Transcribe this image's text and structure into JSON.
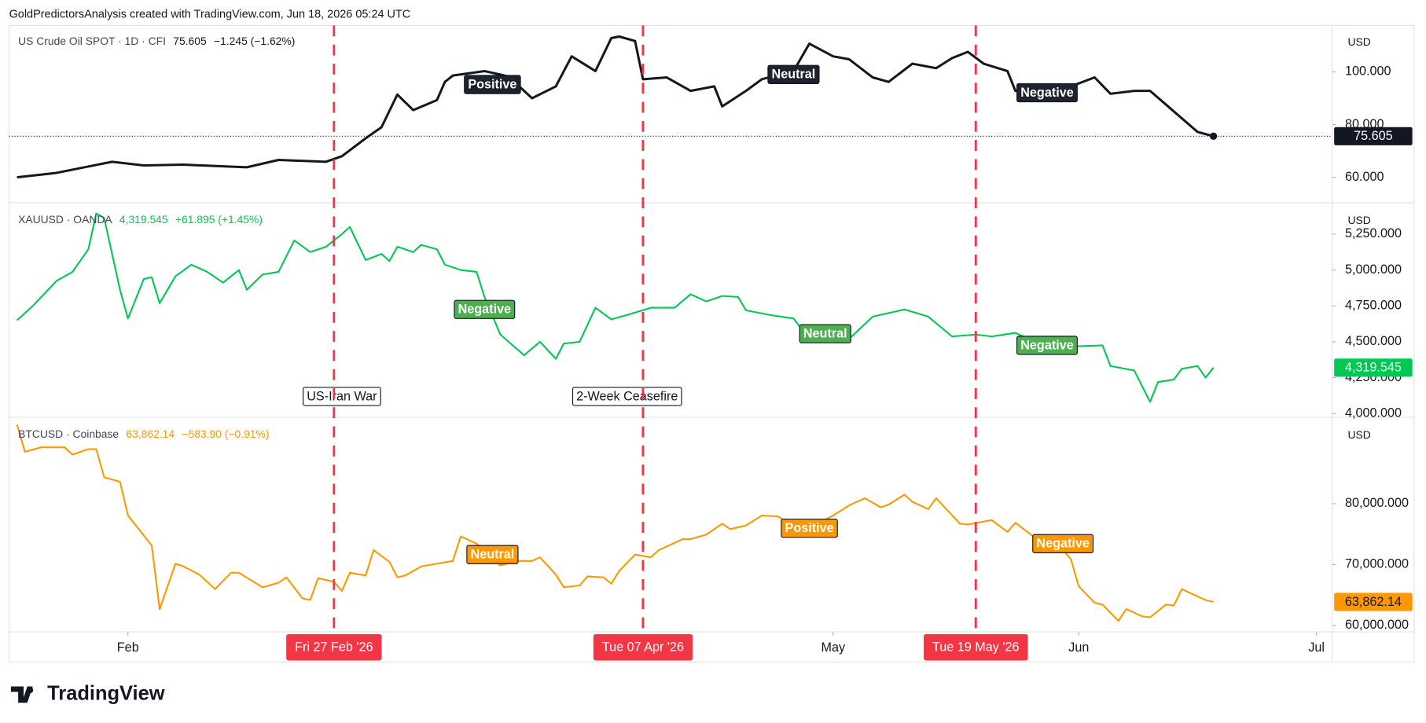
{
  "header": "GoldPredictorsAnalysis created with TradingView.com, Jun 18, 2026 05:24 UTC",
  "brand": "TradingView",
  "events": [
    {
      "x": "2026-02-27",
      "label": "Fri 27 Feb '26"
    },
    {
      "x": "2026-04-07",
      "label": "Tue 07 Apr '26"
    },
    {
      "x": "2026-05-19",
      "label": "Tue 19 May '26"
    }
  ],
  "chart_data": [
    {
      "type": "line",
      "currency": "USD",
      "legend_price": "75.605",
      "legend_change": "−1.245 (−1.62%)",
      "label_color": "#1e222d",
      "tag_text_color": "#ffffff",
      "last_price_line": true,
      "xlim": [
        "2026-01-17",
        "2026-07-03"
      ],
      "ylim": [
        50.7,
        117.6
      ],
      "yticks": [
        {
          "value": 60,
          "label": "60.000"
        },
        {
          "value": 80,
          "label": "80.000"
        },
        {
          "value": 100,
          "label": "100.000"
        }
      ],
      "series": [
        {
          "name": "US Crude Oil SPOT · 1D · CFI",
          "color": "#131722",
          "x": [
            "2026-01-18",
            "2026-01-23",
            "2026-01-30",
            "2026-02-03",
            "2026-02-08",
            "2026-02-16",
            "2026-02-20",
            "2026-02-26",
            "2026-02-28",
            "2026-03-03",
            "2026-03-05",
            "2026-03-07",
            "2026-03-09",
            "2026-03-12",
            "2026-03-13",
            "2026-03-14",
            "2026-03-18",
            "2026-03-21",
            "2026-03-24",
            "2026-03-27",
            "2026-03-29",
            "2026-04-01",
            "2026-04-03",
            "2026-04-04",
            "2026-04-06",
            "2026-04-07",
            "2026-04-10",
            "2026-04-13",
            "2026-04-16",
            "2026-04-17",
            "2026-04-20",
            "2026-04-22",
            "2026-04-26",
            "2026-04-28",
            "2026-05-01",
            "2026-05-03",
            "2026-05-06",
            "2026-05-08",
            "2026-05-11",
            "2026-05-14",
            "2026-05-16",
            "2026-05-18",
            "2026-05-20",
            "2026-05-23",
            "2026-05-24",
            "2026-05-27",
            "2026-05-31",
            "2026-06-03",
            "2026-06-05",
            "2026-06-08",
            "2026-06-10",
            "2026-06-12",
            "2026-06-14",
            "2026-06-16",
            "2026-06-18"
          ],
          "values": [
            60,
            61.7,
            65.9,
            64.5,
            64.8,
            63.8,
            66.6,
            65.9,
            68,
            74.8,
            79,
            91.4,
            85.5,
            89.3,
            96.2,
            98.6,
            100.3,
            98.3,
            90,
            94.5,
            105.9,
            100.3,
            112.8,
            113.4,
            111.7,
            97.2,
            97.9,
            92.8,
            94.5,
            86.9,
            92.8,
            97.2,
            100.3,
            110.7,
            105.9,
            104.8,
            97.9,
            96.2,
            103.1,
            101.4,
            105.2,
            107.6,
            103.1,
            100.3,
            92.8,
            94.5,
            94.5,
            97.9,
            91.7,
            92.8,
            92.8,
            87.6,
            82.4,
            77.2,
            75.605
          ]
        }
      ],
      "annotations": [
        {
          "text": "Positive",
          "x": "2026-03-19",
          "y": 95.2
        },
        {
          "text": "Neutral",
          "x": "2026-04-26",
          "y": 99
        },
        {
          "text": "Negative",
          "x": "2026-05-28",
          "y": 92.1
        }
      ]
    },
    {
      "type": "line",
      "currency": "USD",
      "legend_price": "4,319.545",
      "legend_change": "+61.895 (+1.45%)",
      "label_color": "#4caf50",
      "tag_text_color": "#ffffff",
      "xlim": [
        "2026-01-17",
        "2026-07-03"
      ],
      "ylim": [
        3980,
        5462
      ],
      "yticks": [
        {
          "value": 4000,
          "label": "4,000.000"
        },
        {
          "value": 4250,
          "label": "4,250.000"
        },
        {
          "value": 4500,
          "label": "4,500.000"
        },
        {
          "value": 4750,
          "label": "4,750.000"
        },
        {
          "value": 5000,
          "label": "5,000.000"
        },
        {
          "value": 5250,
          "label": "5,250.000"
        }
      ],
      "series": [
        {
          "name": "XAUUSD · OANDA",
          "color": "#00c853",
          "x": [
            "2026-01-18",
            "2026-01-20",
            "2026-01-23",
            "2026-01-25",
            "2026-01-27",
            "2026-01-28",
            "2026-01-29",
            "2026-01-31",
            "2026-02-01",
            "2026-02-03",
            "2026-02-04",
            "2026-02-05",
            "2026-02-07",
            "2026-02-09",
            "2026-02-11",
            "2026-02-13",
            "2026-02-15",
            "2026-02-16",
            "2026-02-18",
            "2026-02-20",
            "2026-02-22",
            "2026-02-24",
            "2026-02-26",
            "2026-02-28",
            "2026-03-01",
            "2026-03-03",
            "2026-03-05",
            "2026-03-06",
            "2026-03-07",
            "2026-03-09",
            "2026-03-10",
            "2026-03-12",
            "2026-03-13",
            "2026-03-15",
            "2026-03-17",
            "2026-03-18",
            "2026-03-20",
            "2026-03-23",
            "2026-03-25",
            "2026-03-27",
            "2026-03-28",
            "2026-03-30",
            "2026-04-01",
            "2026-04-03",
            "2026-04-05",
            "2026-04-08",
            "2026-04-11",
            "2026-04-13",
            "2026-04-15",
            "2026-04-17",
            "2026-04-19",
            "2026-04-20",
            "2026-04-23",
            "2026-04-26",
            "2026-04-28",
            "2026-05-03",
            "2026-05-06",
            "2026-05-10",
            "2026-05-13",
            "2026-05-16",
            "2026-05-19",
            "2026-05-21",
            "2026-05-24",
            "2026-05-27",
            "2026-06-01",
            "2026-06-04",
            "2026-06-05",
            "2026-06-08",
            "2026-06-10",
            "2026-06-11",
            "2026-06-13",
            "2026-06-14",
            "2026-06-16",
            "2026-06-17",
            "2026-06-18"
          ],
          "values": [
            4650,
            4750,
            4925,
            4987,
            5144,
            5394,
            5362,
            4862,
            4662,
            4937,
            4950,
            4769,
            4956,
            5037,
            4987,
            4912,
            5000,
            4862,
            4969,
            4987,
            5206,
            5125,
            5162,
            5250,
            5300,
            5069,
            5112,
            5062,
            5162,
            5125,
            5175,
            5144,
            5037,
            5000,
            4987,
            4812,
            4550,
            4406,
            4500,
            4381,
            4487,
            4500,
            4737,
            4656,
            4687,
            4737,
            4737,
            4831,
            4781,
            4819,
            4812,
            4719,
            4687,
            4662,
            4519,
            4519,
            4675,
            4725,
            4675,
            4537,
            4550,
            4537,
            4562,
            4487,
            4469,
            4475,
            4331,
            4300,
            4081,
            4219,
            4237,
            4312,
            4331,
            4250,
            4319.545
          ]
        }
      ],
      "annotations": [
        {
          "text": "Negative",
          "x": "2026-03-18",
          "y": 4725
        },
        {
          "text": "Neutral",
          "x": "2026-04-30",
          "y": 4556
        },
        {
          "text": "Negative",
          "x": "2026-05-28",
          "y": 4475
        }
      ],
      "notes": [
        {
          "text": "US-Iran War",
          "x": "2026-02-28",
          "y": 4119
        },
        {
          "text": "2-Week Ceasefire",
          "x": "2026-04-05",
          "y": 4119
        }
      ]
    },
    {
      "type": "line",
      "currency": "USD",
      "legend_price": "63,862.14",
      "legend_change": "−583.90 (−0.91%)",
      "label_color": "#ff9800",
      "tag_text_color": "#131722",
      "xlim": [
        "2026-01-17",
        "2026-07-03"
      ],
      "ylim": [
        58950,
        94030
      ],
      "xticks": [
        {
          "value": "2026-02-01",
          "label": "Feb"
        },
        {
          "value": "2026-05-01",
          "label": "May"
        },
        {
          "value": "2026-06-01",
          "label": "Jun"
        },
        {
          "value": "2026-07-01",
          "label": "Jul"
        }
      ],
      "yticks": [
        {
          "value": 60000,
          "label": "60,000.000"
        },
        {
          "value": 70000,
          "label": "70,000.000"
        },
        {
          "value": 80000,
          "label": "80,000.000"
        }
      ],
      "series": [
        {
          "name": "BTCUSD · Coinbase",
          "color": "#ff9800",
          "x": [
            "2026-01-18",
            "2026-01-19",
            "2026-01-21",
            "2026-01-24",
            "2026-01-25",
            "2026-01-27",
            "2026-01-28",
            "2026-01-29",
            "2026-01-31",
            "2026-02-01",
            "2026-02-04",
            "2026-02-05",
            "2026-02-07",
            "2026-02-08",
            "2026-02-10",
            "2026-02-12",
            "2026-02-14",
            "2026-02-15",
            "2026-02-18",
            "2026-02-20",
            "2026-02-21",
            "2026-02-23",
            "2026-02-24",
            "2026-02-25",
            "2026-02-27",
            "2026-02-28",
            "2026-03-01",
            "2026-03-03",
            "2026-03-04",
            "2026-03-06",
            "2026-03-07",
            "2026-03-08",
            "2026-03-10",
            "2026-03-12",
            "2026-03-14",
            "2026-03-15",
            "2026-03-17",
            "2026-03-20",
            "2026-03-22",
            "2026-03-24",
            "2026-03-25",
            "2026-03-27",
            "2026-03-28",
            "2026-03-30",
            "2026-03-31",
            "2026-04-02",
            "2026-04-03",
            "2026-04-04",
            "2026-04-06",
            "2026-04-08",
            "2026-04-09",
            "2026-04-12",
            "2026-04-13",
            "2026-04-15",
            "2026-04-17",
            "2026-04-18",
            "2026-04-20",
            "2026-04-22",
            "2026-04-24",
            "2026-04-26",
            "2026-04-29",
            "2026-05-01",
            "2026-05-03",
            "2026-05-05",
            "2026-05-07",
            "2026-05-08",
            "2026-05-10",
            "2026-05-11",
            "2026-05-13",
            "2026-05-14",
            "2026-05-17",
            "2026-05-18",
            "2026-05-21",
            "2026-05-23",
            "2026-05-24",
            "2026-05-27",
            "2026-05-30",
            "2026-05-31",
            "2026-06-01",
            "2026-06-03",
            "2026-06-04",
            "2026-06-06",
            "2026-06-07",
            "2026-06-09",
            "2026-06-10",
            "2026-06-12",
            "2026-06-13",
            "2026-06-14",
            "2026-06-15",
            "2026-06-17",
            "2026-06-18"
          ],
          "values": [
            92985,
            88507,
            89254,
            89254,
            88060,
            88955,
            88955,
            84328,
            83582,
            78060,
            73134,
            62687,
            70150,
            69702,
            68358,
            65970,
            68657,
            68657,
            66269,
            67015,
            67910,
            64478,
            64179,
            67761,
            67164,
            65672,
            68657,
            68209,
            72388,
            70448,
            67910,
            68209,
            69702,
            70149,
            70597,
            74627,
            73433,
            69851,
            70597,
            70597,
            71194,
            68358,
            66269,
            66567,
            68060,
            67910,
            66866,
            68955,
            71642,
            71194,
            72388,
            74179,
            74179,
            74925,
            76716,
            75821,
            76418,
            78060,
            77910,
            76418,
            76716,
            78060,
            79701,
            80896,
            79403,
            79851,
            81492,
            80298,
            79105,
            80896,
            76716,
            76567,
            77313,
            75373,
            76866,
            73881,
            72388,
            70896,
            66418,
            63732,
            63433,
            60746,
            62687,
            61493,
            61343,
            63433,
            63284,
            65970,
            65373,
            64179,
            63862.14
          ]
        }
      ],
      "annotations": [
        {
          "text": "Neutral",
          "x": "2026-03-19",
          "y": 71642
        },
        {
          "text": "Positive",
          "x": "2026-04-28",
          "y": 75970
        },
        {
          "text": "Negative",
          "x": "2026-05-30",
          "y": 73433
        }
      ]
    }
  ]
}
